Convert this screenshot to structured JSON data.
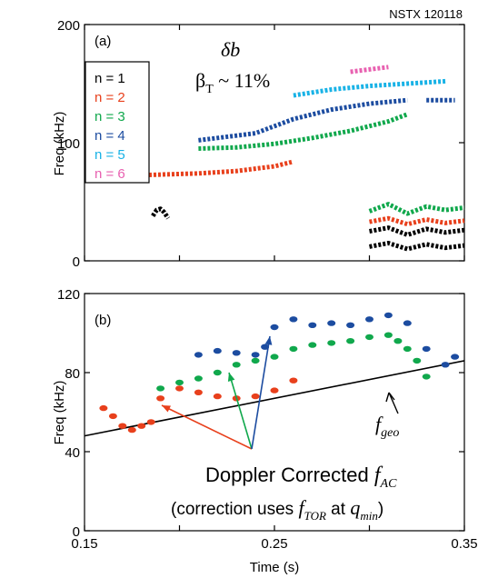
{
  "shot_label": "NSTX 120118",
  "chart_data": [
    {
      "panel_label": "(a)",
      "type": "scatter",
      "xlabel": "",
      "ylabel": "Freq (kHz)",
      "xlim": [
        0.15,
        0.35
      ],
      "ylim": [
        0,
        200
      ],
      "yticks": [
        "0",
        "100",
        "200"
      ],
      "annotation_symbol": "δb",
      "annotation_beta": "β",
      "annotation_beta_sub": "T",
      "annotation_beta_rest": " ~ 11%",
      "legend_position": "left",
      "series": [
        {
          "name": "n = 1",
          "color": "#000000",
          "segments": [
            {
              "x": [
                0.186,
                0.188,
                0.19,
                0.192,
                0.194
              ],
              "y": [
                38,
                43,
                44,
                41,
                36
              ]
            },
            {
              "x": [
                0.3,
                0.31,
                0.32,
                0.33,
                0.34,
                0.35
              ],
              "y": [
                12,
                15,
                10,
                14,
                11,
                13
              ]
            },
            {
              "x": [
                0.3,
                0.31,
                0.32,
                0.33,
                0.34,
                0.35
              ],
              "y": [
                25,
                28,
                22,
                27,
                24,
                26
              ]
            }
          ]
        },
        {
          "name": "n = 2",
          "color": "#e8401c",
          "segments": [
            {
              "x": [
                0.172,
                0.19,
                0.21,
                0.23,
                0.25,
                0.26
              ],
              "y": [
                72,
                73,
                74,
                76,
                80,
                84
              ]
            },
            {
              "x": [
                0.3,
                0.31,
                0.32,
                0.33,
                0.34,
                0.35
              ],
              "y": [
                33,
                36,
                31,
                35,
                32,
                34
              ]
            }
          ]
        },
        {
          "name": "n = 3",
          "color": "#10a84c",
          "segments": [
            {
              "x": [
                0.21,
                0.23,
                0.25,
                0.27,
                0.29,
                0.31,
                0.32
              ],
              "y": [
                95,
                96,
                99,
                104,
                110,
                118,
                124
              ]
            },
            {
              "x": [
                0.3,
                0.31,
                0.32,
                0.33,
                0.34,
                0.35
              ],
              "y": [
                42,
                48,
                40,
                46,
                43,
                45
              ]
            }
          ]
        },
        {
          "name": "n = 4",
          "color": "#1c4ca0",
          "segments": [
            {
              "x": [
                0.21,
                0.23,
                0.24,
                0.26,
                0.28,
                0.3,
                0.32
              ],
              "y": [
                102,
                106,
                108,
                120,
                128,
                133,
                136
              ]
            },
            {
              "x": [
                0.33,
                0.345
              ],
              "y": [
                136,
                136
              ]
            }
          ]
        },
        {
          "name": "n = 5",
          "color": "#18b2e6",
          "segments": [
            {
              "x": [
                0.26,
                0.28,
                0.3,
                0.32,
                0.34
              ],
              "y": [
                140,
                145,
                148,
                150,
                152
              ]
            }
          ]
        },
        {
          "name": "n = 6",
          "color": "#e860b0",
          "segments": [
            {
              "x": [
                0.29,
                0.3,
                0.31
              ],
              "y": [
                160,
                162,
                164
              ]
            }
          ]
        }
      ]
    },
    {
      "panel_label": "(b)",
      "type": "scatter",
      "xlabel": "Time (s)",
      "ylabel": "Freq (kHz)",
      "xlim": [
        0.15,
        0.35
      ],
      "ylim": [
        0,
        120
      ],
      "xticks": [
        "0.15",
        "0.25",
        "0.35"
      ],
      "yticks": [
        "0",
        "40",
        "80",
        "120"
      ],
      "f_geo_label": "f",
      "f_geo_sub": "geo",
      "f_geo": {
        "x": [
          0.15,
          0.35
        ],
        "y": [
          48,
          86
        ],
        "color": "#000000"
      },
      "caption_line1": "Doppler Corrected ",
      "caption_f": "f",
      "caption_sub1": "AC",
      "caption_line2_a": "(correction uses ",
      "caption_sub2": "TOR",
      "caption_line2_b": " at ",
      "caption_q": "q",
      "caption_sub3": "min",
      "caption_close": ")",
      "series": [
        {
          "color": "#e8401c",
          "x": [
            0.16,
            0.165,
            0.17,
            0.175,
            0.18,
            0.185,
            0.19,
            0.2,
            0.21,
            0.22,
            0.23,
            0.24,
            0.25,
            0.26
          ],
          "y": [
            62,
            58,
            53,
            51,
            53,
            55,
            67,
            72,
            70,
            68,
            67,
            68,
            71,
            76
          ]
        },
        {
          "color": "#10a84c",
          "x": [
            0.19,
            0.2,
            0.21,
            0.22,
            0.23,
            0.24,
            0.25,
            0.26,
            0.27,
            0.28,
            0.29,
            0.3,
            0.31,
            0.315,
            0.32,
            0.325,
            0.33
          ],
          "y": [
            72,
            75,
            77,
            80,
            84,
            86,
            88,
            92,
            94,
            95,
            96,
            98,
            99,
            96,
            92,
            86,
            78
          ]
        },
        {
          "color": "#1c4ca0",
          "x": [
            0.21,
            0.22,
            0.23,
            0.24,
            0.245,
            0.25,
            0.26,
            0.27,
            0.28,
            0.29,
            0.3,
            0.31,
            0.32,
            0.33,
            0.34,
            0.345
          ],
          "y": [
            89,
            91,
            90,
            89,
            93,
            103,
            107,
            104,
            105,
            104,
            107,
            109,
            105,
            92,
            84,
            88
          ]
        }
      ],
      "arrows": [
        {
          "color": "#e8401c",
          "from": [
            0.27,
            0
          ],
          "to": [
            0.195,
            0
          ]
        },
        {
          "color": "#10a84c",
          "from": [
            0.27,
            0
          ],
          "to": [
            0.235,
            0
          ]
        },
        {
          "color": "#1c4ca0",
          "from": [
            0.27,
            0
          ],
          "to": [
            0.25,
            0
          ]
        }
      ]
    }
  ]
}
